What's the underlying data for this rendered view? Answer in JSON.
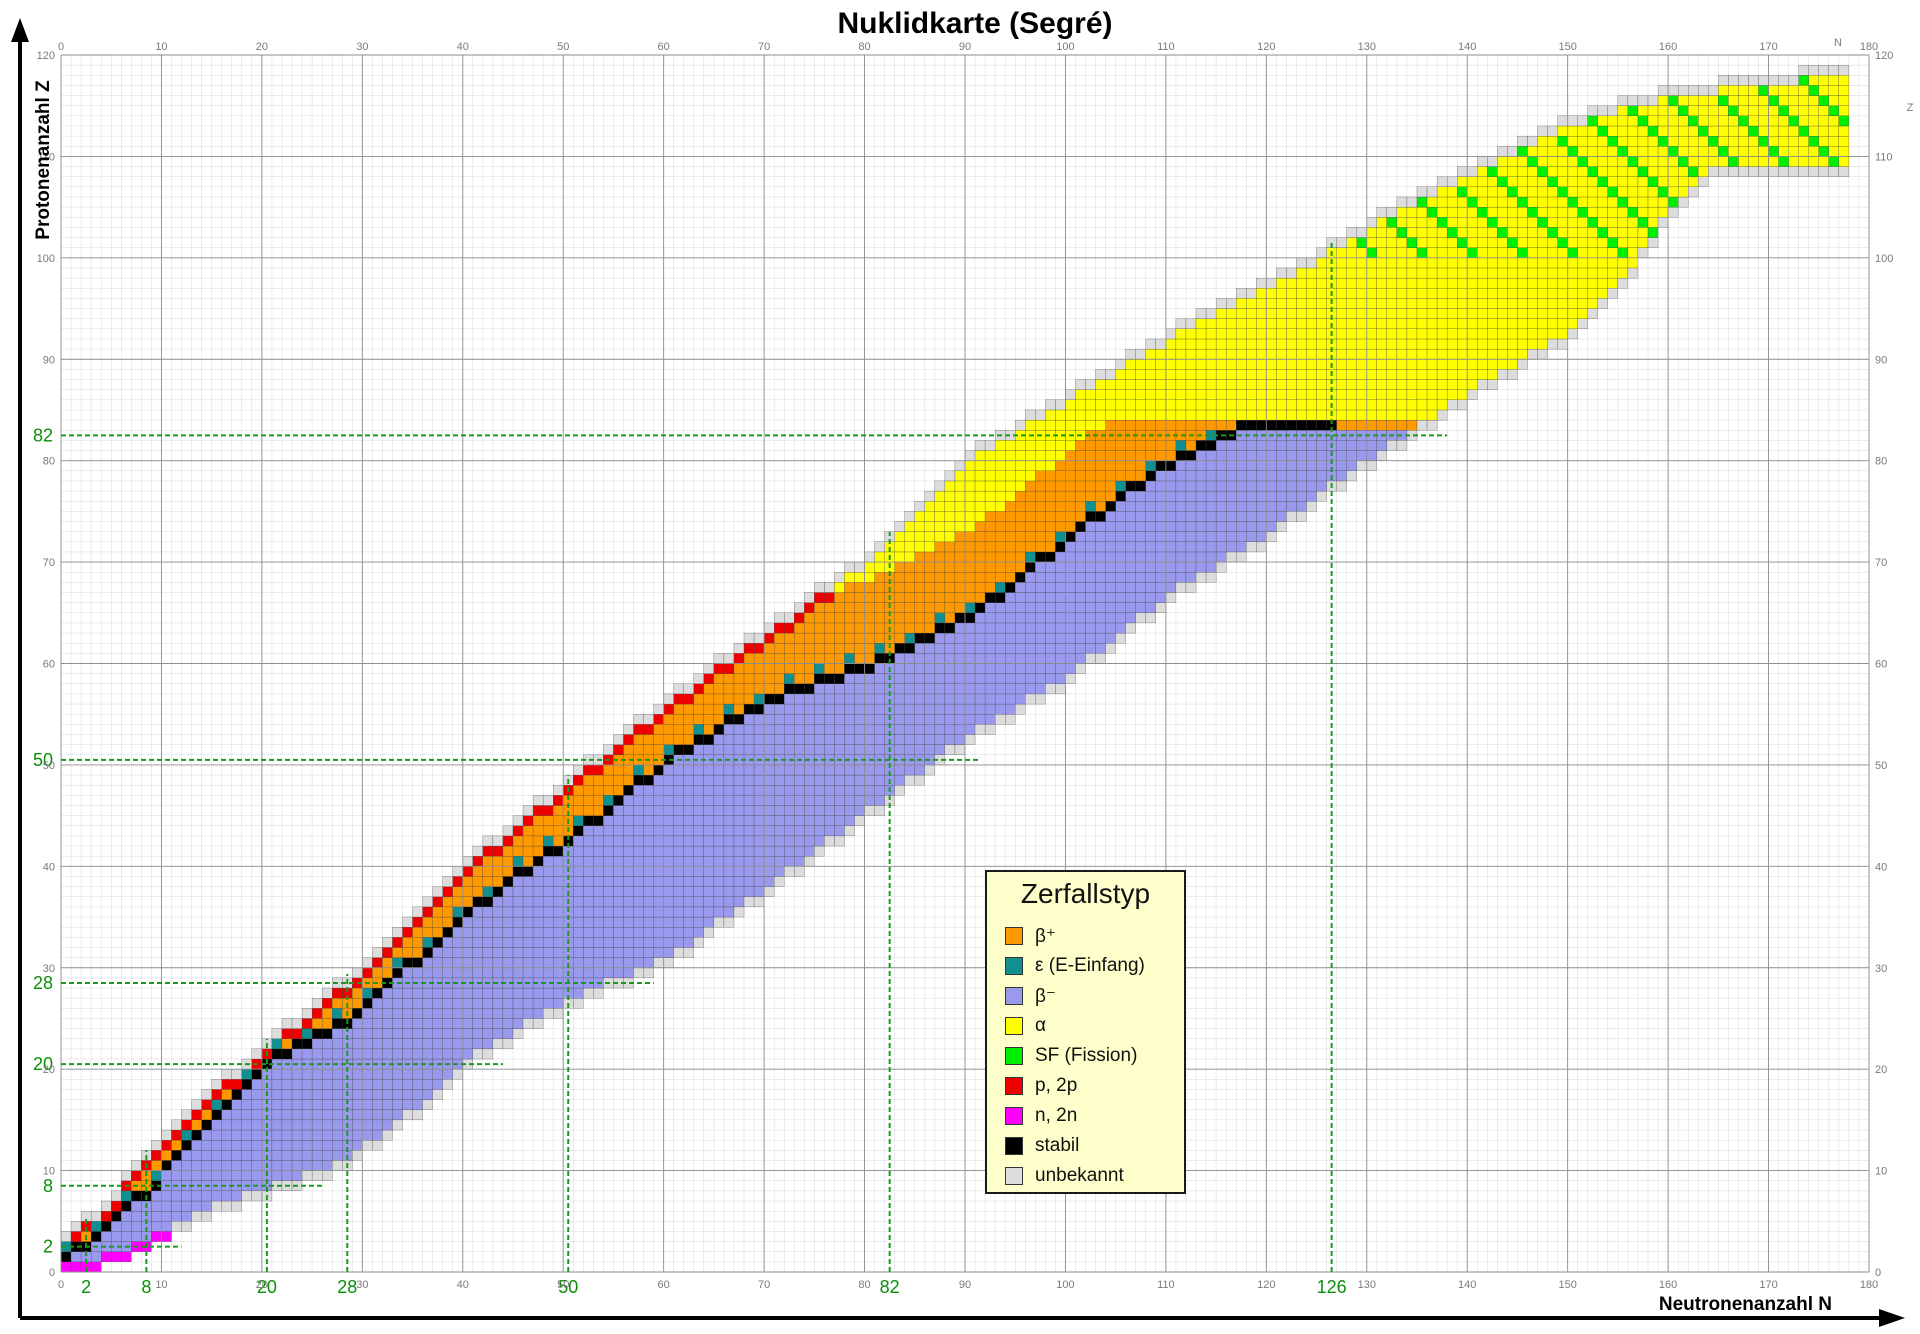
{
  "chart_data": {
    "type": "heatmap",
    "title": "Nuklidkarte (Segré)",
    "xlabel": "Neutronenanzahl N",
    "ylabel": "Protonenanzahl Z",
    "x_axis_letter": "N",
    "y_axis_letter": "Z",
    "xlim": [
      0,
      180
    ],
    "ylim": [
      0,
      120
    ],
    "x_ticks": [
      "0",
      "10",
      "20",
      "30",
      "40",
      "50",
      "60",
      "70",
      "80",
      "90",
      "100",
      "110",
      "120",
      "130",
      "140",
      "150",
      "160",
      "170",
      "180"
    ],
    "y_ticks": [
      "0",
      "10",
      "20",
      "30",
      "40",
      "50",
      "60",
      "70",
      "80",
      "90",
      "100",
      "110",
      "120"
    ],
    "magic_numbers": [
      {
        "value": 2,
        "label": "2"
      },
      {
        "value": 8,
        "label": "8"
      },
      {
        "value": 20,
        "label": "20"
      },
      {
        "value": 28,
        "label": "28"
      },
      {
        "value": 50,
        "label": "50"
      },
      {
        "value": 82,
        "label": "82"
      },
      {
        "value": 126,
        "label": "126"
      }
    ],
    "magic_line_color": "#1a9a1a",
    "grid": true,
    "legend_position": "lower-right",
    "colors": {
      "beta_plus": "#ff9900",
      "ec": "#109090",
      "beta_minus": "#9999ee",
      "alpha": "#ffff00",
      "sf": "#00ee00",
      "p": "#ee0000",
      "n": "#ff00ff",
      "stable": "#000000",
      "unknown": "#dddddd"
    },
    "legend": {
      "title": "Zerfallstyp",
      "items": [
        {
          "key": "beta_plus",
          "label": "β⁺"
        },
        {
          "key": "ec",
          "label": "ε (E-Einfang)"
        },
        {
          "key": "beta_minus",
          "label": "β⁻"
        },
        {
          "key": "alpha",
          "label": "α"
        },
        {
          "key": "sf",
          "label": "SF (Fission)"
        },
        {
          "key": "p",
          "label": "p, 2p"
        },
        {
          "key": "n",
          "label": "n, 2n"
        },
        {
          "key": "stable",
          "label": "stabil"
        },
        {
          "key": "unknown",
          "label": "unbekannt"
        }
      ]
    },
    "nuclide_band": {
      "description": "Bekannte Nuklide entlang der Stabilitätslinie",
      "stability_line": [
        [
          0,
          1
        ],
        [
          2,
          2
        ],
        [
          6,
          6
        ],
        [
          8,
          7
        ],
        [
          12,
          12
        ],
        [
          20,
          20
        ],
        [
          28,
          24
        ],
        [
          40,
          35
        ],
        [
          50,
          42
        ],
        [
          60,
          50
        ],
        [
          70,
          56
        ],
        [
          82,
          60
        ],
        [
          90,
          64
        ],
        [
          100,
          72
        ],
        [
          108,
          78
        ],
        [
          118,
          83
        ],
        [
          126,
          83
        ]
      ],
      "proton_rich_edge": [
        [
          0,
          3
        ],
        [
          4,
          6
        ],
        [
          8,
          11
        ],
        [
          12,
          15
        ],
        [
          20,
          22
        ],
        [
          30,
          30
        ],
        [
          40,
          40
        ],
        [
          50,
          48
        ],
        [
          60,
          56
        ],
        [
          70,
          63
        ],
        [
          80,
          70
        ],
        [
          90,
          80
        ],
        [
          100,
          86
        ],
        [
          110,
          92
        ],
        [
          120,
          97
        ],
        [
          130,
          103
        ],
        [
          140,
          108
        ],
        [
          150,
          113
        ],
        [
          160,
          116
        ],
        [
          177,
          118
        ]
      ],
      "neutron_rich_edge": [
        [
          2,
          0
        ],
        [
          8,
          2
        ],
        [
          16,
          6
        ],
        [
          28,
          10
        ],
        [
          36,
          16
        ],
        [
          40,
          20
        ],
        [
          50,
          26
        ],
        [
          60,
          30
        ],
        [
          70,
          37
        ],
        [
          82,
          46
        ],
        [
          90,
          52
        ],
        [
          100,
          58
        ],
        [
          110,
          66
        ],
        [
          120,
          72
        ],
        [
          128,
          78
        ],
        [
          134,
          82
        ],
        [
          140,
          86
        ],
        [
          150,
          92
        ],
        [
          156,
          98
        ],
        [
          160,
          104
        ],
        [
          164,
          108
        ]
      ]
    }
  }
}
